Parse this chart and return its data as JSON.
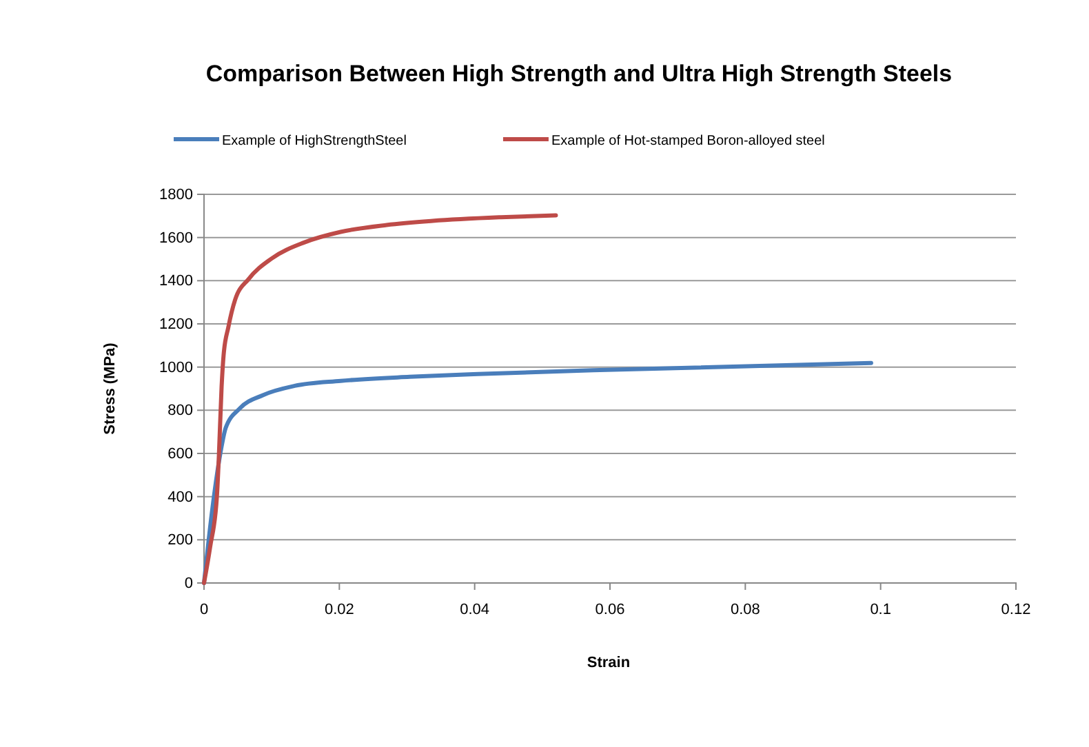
{
  "chart_data": {
    "type": "line",
    "title": "Comparison Between High Strength  and Ultra High Strength Steels",
    "xlabel": "Strain",
    "ylabel": "Stress (MPa)",
    "xlim": [
      0,
      0.12
    ],
    "xticks": [
      0,
      0.02,
      0.04,
      0.06,
      0.08,
      0.1,
      0.12
    ],
    "ylim": [
      0,
      1800
    ],
    "yticks": [
      0,
      200,
      400,
      600,
      800,
      1000,
      1200,
      1400,
      1600,
      1800
    ],
    "grid": "y",
    "legend": "top",
    "marker": "none",
    "line_style": "solid",
    "series": [
      {
        "name": "Example of HighStrengthSteel",
        "color": "#4a7ebb",
        "x": [
          0,
          0.0012,
          0.0026,
          0.0032,
          0.0053,
          0.0087,
          0.0134,
          0.0202,
          0.0304,
          0.0405,
          0.0575,
          0.0986
        ],
        "values": [
          0,
          335,
          633,
          718,
          809,
          870,
          913,
          936,
          955,
          968,
          985,
          1019
        ]
      },
      {
        "name": "Example of Hot-stamped Boron-alloyed steel",
        "color": "#be4b48",
        "x": [
          0,
          0.0009,
          0.0019,
          0.0022,
          0.0026,
          0.0029,
          0.0036,
          0.0046,
          0.0066,
          0.01,
          0.0148,
          0.0202,
          0.027,
          0.0338,
          0.0439,
          0.052
        ],
        "values": [
          0,
          166,
          399,
          590,
          909,
          1057,
          1185,
          1312,
          1408,
          1503,
          1577,
          1626,
          1658,
          1677,
          1694,
          1703
        ]
      }
    ]
  }
}
